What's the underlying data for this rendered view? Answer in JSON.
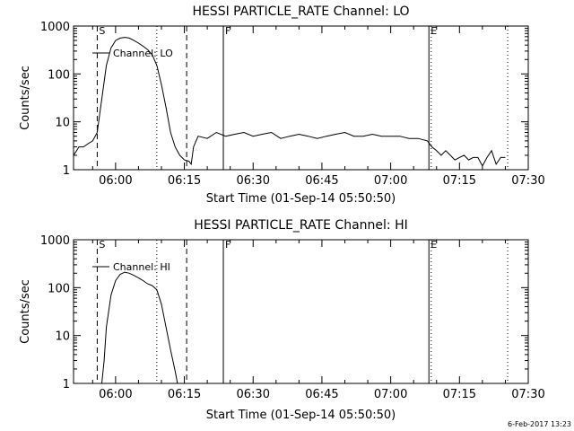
{
  "footer": {
    "date": "6-Feb-2017 13:23"
  },
  "chart_data": [
    {
      "type": "line",
      "title": "HESSI PARTICLE_RATE Channel: LO",
      "xlabel": "Start Time (01-Sep-14 05:50:50)",
      "ylabel": "Counts/sec",
      "yscale": "log",
      "ylim": [
        1,
        1000
      ],
      "yticks": [
        "1",
        "10",
        "100",
        "1000"
      ],
      "xlim": [
        "05:50:50",
        "07:30:00"
      ],
      "xticks": [
        "06:00",
        "06:15",
        "06:30",
        "06:45",
        "07:00",
        "07:15",
        "07:30"
      ],
      "legend": "Channel: LO",
      "vlines": [
        {
          "label": "S",
          "time": "05:56:00",
          "style": "dashed"
        },
        {
          "label": "",
          "time": "06:09:00",
          "style": "dotted"
        },
        {
          "label": "",
          "time": "06:15:30",
          "style": "dashed"
        },
        {
          "label": "F",
          "time": "06:23:30",
          "style": "solid"
        },
        {
          "label": "E",
          "time": "07:08:20",
          "style": "solid"
        },
        {
          "label": "",
          "time": "07:08:50",
          "style": "dotted"
        },
        {
          "label": "",
          "time": "07:25:30",
          "style": "dotted"
        }
      ],
      "series": [
        {
          "x": [
            "05:50:50",
            "05:51:30",
            "05:52:00",
            "05:53:00",
            "05:54:00",
            "05:55:00",
            "05:56:00",
            "05:57:00",
            "05:58:00",
            "05:59:00",
            "06:00:00",
            "06:01:00",
            "06:02:00",
            "06:03:00",
            "06:04:00",
            "06:05:00",
            "06:06:00",
            "06:07:00",
            "06:08:00",
            "06:09:00",
            "06:10:00",
            "06:11:00",
            "06:12:00",
            "06:13:00",
            "06:14:00",
            "06:15:00",
            "06:16:00",
            "06:16:30",
            "06:17:00",
            "06:18:00",
            "06:20:00",
            "06:22:00",
            "06:24:00",
            "06:26:00",
            "06:28:00",
            "06:30:00",
            "06:32:00",
            "06:34:00",
            "06:36:00",
            "06:38:00",
            "06:40:00",
            "06:42:00",
            "06:44:00",
            "06:46:00",
            "06:48:00",
            "06:50:00",
            "06:52:00",
            "06:54:00",
            "06:56:00",
            "06:58:00",
            "07:00:00",
            "07:02:00",
            "07:04:00",
            "07:06:00",
            "07:08:00",
            "07:09:00",
            "07:10:00",
            "07:11:00",
            "07:12:00",
            "07:13:00",
            "07:14:00",
            "07:15:00",
            "07:16:00",
            "07:17:00",
            "07:18:00",
            "07:19:00",
            "07:20:00",
            "07:21:00",
            "07:22:00",
            "07:23:00",
            "07:24:00",
            "07:25:00"
          ],
          "y": [
            2,
            2.5,
            3,
            3,
            3.5,
            4,
            6,
            30,
            150,
            350,
            500,
            560,
            580,
            560,
            500,
            440,
            380,
            320,
            250,
            150,
            60,
            20,
            6,
            3,
            2,
            1.6,
            1.5,
            1.3,
            3,
            5,
            4.5,
            6,
            5,
            5.5,
            6,
            5,
            5.5,
            6,
            4.5,
            5,
            5.5,
            5,
            4.5,
            5,
            5.5,
            6,
            5,
            5,
            5.5,
            5,
            5,
            5,
            4.5,
            4.5,
            4,
            3,
            2.5,
            2,
            2.5,
            2,
            1.6,
            1.8,
            2,
            1.6,
            1.8,
            1.8,
            1.2,
            1.8,
            2.5,
            1.3,
            1.8,
            1.8
          ]
        }
      ]
    },
    {
      "type": "line",
      "title": "HESSI PARTICLE_RATE Channel: HI",
      "xlabel": "Start Time (01-Sep-14 05:50:50)",
      "ylabel": "Counts/sec",
      "yscale": "log",
      "ylim": [
        1,
        1000
      ],
      "yticks": [
        "1",
        "10",
        "100",
        "1000"
      ],
      "xlim": [
        "05:50:50",
        "07:30:00"
      ],
      "xticks": [
        "06:00",
        "06:15",
        "06:30",
        "06:45",
        "07:00",
        "07:15",
        "07:30"
      ],
      "legend": "Channel: HI",
      "vlines": [
        {
          "label": "S",
          "time": "05:56:00",
          "style": "dashed"
        },
        {
          "label": "",
          "time": "06:09:00",
          "style": "dotted"
        },
        {
          "label": "",
          "time": "06:15:30",
          "style": "dashed"
        },
        {
          "label": "F",
          "time": "06:23:30",
          "style": "solid"
        },
        {
          "label": "E",
          "time": "07:08:20",
          "style": "solid"
        },
        {
          "label": "",
          "time": "07:08:50",
          "style": "dotted"
        },
        {
          "label": "",
          "time": "07:25:30",
          "style": "dotted"
        }
      ],
      "series": [
        {
          "x": [
            "05:57:00",
            "05:57:30",
            "05:58:00",
            "05:59:00",
            "06:00:00",
            "06:01:00",
            "06:02:00",
            "06:03:00",
            "06:04:00",
            "06:05:00",
            "06:06:00",
            "06:07:00",
            "06:08:00",
            "06:09:00",
            "06:10:00",
            "06:11:00",
            "06:12:00",
            "06:13:00",
            "06:13:30"
          ],
          "y": [
            1,
            3,
            15,
            70,
            140,
            190,
            210,
            200,
            180,
            160,
            140,
            120,
            110,
            90,
            45,
            15,
            5,
            1.8,
            1
          ]
        }
      ]
    }
  ]
}
